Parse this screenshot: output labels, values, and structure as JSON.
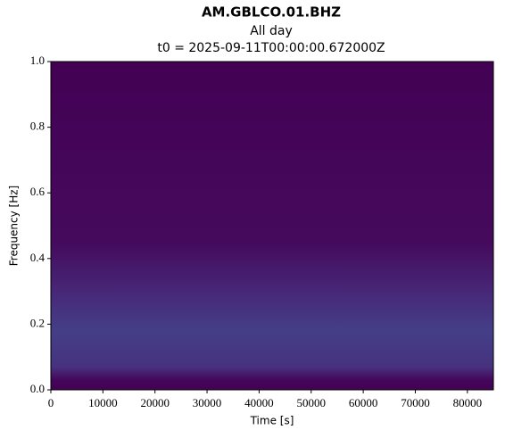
{
  "chart_data": {
    "type": "spectrogram",
    "title": "AM.GBLCO.01.BHZ",
    "subtitle": "All day",
    "annotation": "t0 = 2025-09-11T00:00:00.672000Z",
    "x_label": "Time [s]",
    "y_label": "Frequency [Hz]",
    "xlim": [
      0,
      85000
    ],
    "xticks": [
      0,
      10000,
      20000,
      30000,
      40000,
      50000,
      60000,
      70000,
      80000
    ],
    "ylim": [
      0,
      1
    ],
    "yticks": [
      {
        "value": 0,
        "label": "0.0"
      },
      0.2,
      0.4,
      0.6,
      0.8,
      {
        "value": 1,
        "label": "1.0"
      }
    ],
    "colormap": "viridis"
  }
}
